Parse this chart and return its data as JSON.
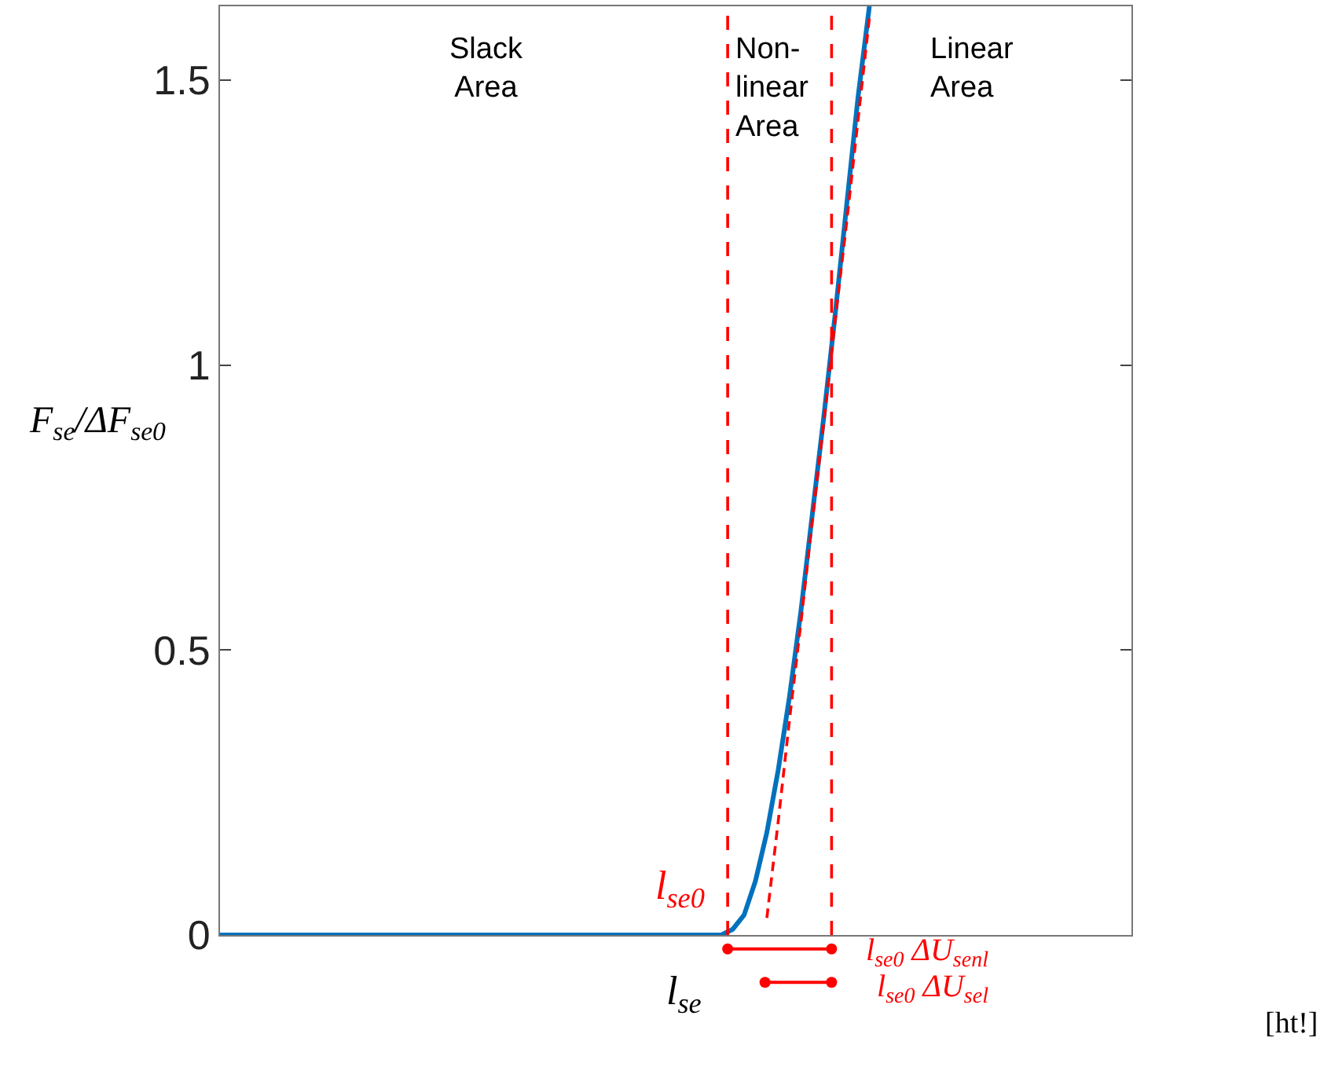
{
  "chart_data": {
    "type": "line",
    "ylabel": "F$_{se}$/ΔF$_{se0}$",
    "ylim": [
      0,
      1.63
    ],
    "yticks": [
      0,
      0.5,
      1,
      1.5
    ],
    "tick_labels": "y",
    "grid": false,
    "categories": [
      null,
      null,
      null,
      null,
      null,
      null,
      null,
      null,
      null,
      null,
      null,
      null,
      null,
      null,
      null,
      null,
      null,
      null,
      null,
      null,
      null,
      null,
      null,
      null,
      null,
      null,
      null,
      null,
      null,
      null,
      null,
      null,
      null,
      null,
      null,
      null,
      null,
      null,
      null,
      null,
      null,
      null,
      null,
      null,
      null,
      null,
      null,
      null,
      null,
      null,
      null,
      null,
      null,
      null,
      null,
      null,
      null,
      null,
      null,
      null,
      null,
      null,
      null,
      null,
      null,
      null,
      null,
      null,
      null,
      null,
      null,
      null,
      null,
      null,
      null,
      null,
      null,
      null,
      null,
      null,
      null
    ],
    "series": [
      {
        "color": "#0072bd",
        "line_style": "solid",
        "values": [
          0,
          0,
          0,
          0,
          0,
          0,
          0,
          0,
          0,
          0,
          0,
          0,
          0,
          0,
          0,
          0,
          0,
          0,
          0,
          0,
          0,
          0,
          0,
          0,
          0,
          0,
          0,
          0,
          0,
          0,
          0,
          0,
          0,
          0,
          0,
          0,
          0,
          0,
          0,
          0,
          0,
          0,
          0,
          0,
          0,
          0.01,
          0.035,
          0.095,
          0.18,
          0.29,
          0.42,
          0.57,
          0.74,
          0.91,
          1.09,
          1.28,
          1.47,
          1.63,
          null,
          null,
          null,
          null,
          null,
          null,
          null,
          null,
          null,
          null,
          null,
          null,
          null,
          null,
          null,
          null,
          null,
          null,
          null,
          null,
          null,
          null,
          null
        ]
      },
      {
        "color": "#ff0000",
        "line_style": "dashed",
        "values": [
          null,
          null,
          null,
          null,
          null,
          null,
          null,
          null,
          null,
          null,
          null,
          null,
          null,
          null,
          null,
          null,
          null,
          null,
          null,
          null,
          null,
          null,
          null,
          null,
          null,
          null,
          null,
          null,
          null,
          null,
          null,
          null,
          null,
          null,
          null,
          null,
          null,
          null,
          null,
          null,
          null,
          null,
          null,
          null,
          null,
          null,
          null,
          null,
          0.03,
          0.2,
          0.38,
          0.55,
          0.73,
          0.9,
          1.08,
          1.25,
          1.43,
          1.61,
          null,
          null,
          null,
          null,
          null,
          null,
          null,
          null,
          null,
          null,
          null,
          null,
          null,
          null,
          null,
          null,
          null,
          null,
          null,
          null,
          null,
          null,
          null
        ]
      }
    ],
    "annotations": [
      "Slack\nArea",
      "Non-\nlinear\nArea",
      "Linear\nArea",
      "l$_{se0}$",
      "l$_{se}$",
      "l$_{se0}$ ΔU$_{senl}$",
      "l$_{se0}$ ΔU$_{sel}$",
      "[ht!]"
    ]
  }
}
